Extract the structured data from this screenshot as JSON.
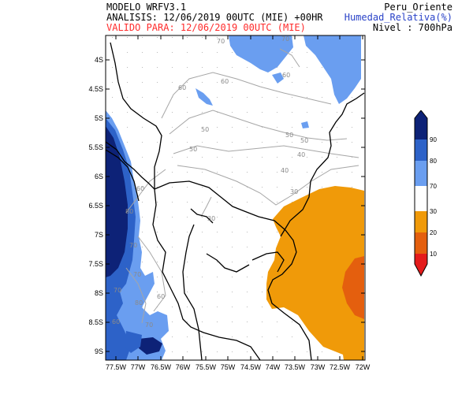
{
  "header": {
    "model": "MODELO WRFV3.1",
    "analysis": "ANALISIS: 12/06/2019 00UTC (MIE) +00HR",
    "valid": "VALIDO PARA: 12/06/2019 00UTC (MIE)",
    "region": "Peru_Oriente",
    "variable": "Humedad_Relativa(%)",
    "level": "Nivel : 700hPa"
  },
  "colors": {
    "valid_text": "#ff2b2b",
    "variable_text": "#2a43c8",
    "dark_blue": "#0d2277",
    "mid_blue": "#2d62c8",
    "light_blue": "#6a9ef0",
    "orange": "#f09a09",
    "dark_orange": "#e45f0e",
    "red": "#e41b1b",
    "contour": "#a6a6a6",
    "border": "#000000"
  },
  "axes": {
    "lat_labels": [
      "4S",
      "4.5S",
      "5S",
      "5.5S",
      "6S",
      "6.5S",
      "7S",
      "7.5S",
      "8S",
      "8.5S",
      "9S"
    ],
    "lon_labels": [
      "77.5W",
      "77W",
      "76.5W",
      "76W",
      "75.5W",
      "75W",
      "74.5W",
      "74W",
      "73.5W",
      "73W",
      "72.5W",
      "72W"
    ]
  },
  "contour_labels": [
    "70",
    "70",
    "60",
    "60",
    "50",
    "50",
    "50",
    "40",
    "40",
    "30",
    "30",
    "60",
    "80",
    "70",
    "70",
    "60",
    "80",
    "70",
    "60",
    "70",
    "60",
    "50"
  ],
  "legend": {
    "labels": [
      "90",
      "80",
      "70",
      "30",
      "20",
      "10"
    ]
  }
}
